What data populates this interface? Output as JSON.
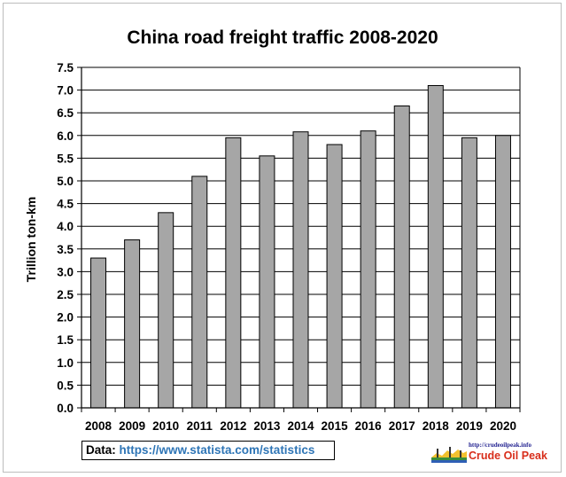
{
  "chart_data": {
    "type": "bar",
    "title": "China road freight traffic 2008-2020",
    "xlabel": "",
    "ylabel": "Trillion ton-km",
    "categories": [
      "2008",
      "2009",
      "2010",
      "2011",
      "2012",
      "2013",
      "2014",
      "2015",
      "2016",
      "2017",
      "2018",
      "2019",
      "2020"
    ],
    "values": [
      3.3,
      3.7,
      4.3,
      5.1,
      5.95,
      5.55,
      6.08,
      5.8,
      6.1,
      6.65,
      7.1,
      5.95,
      6.0
    ],
    "ylim": [
      0,
      7.5
    ],
    "yticks": [
      "0.0",
      "0.5",
      "1.0",
      "1.5",
      "2.0",
      "2.5",
      "3.0",
      "3.5",
      "4.0",
      "4.5",
      "5.0",
      "5.5",
      "6.0",
      "6.5",
      "7.0",
      "7.5"
    ],
    "grid": true,
    "legend": "none",
    "colors": {
      "bar": "#a6a6a6",
      "bar_stroke": "#000000",
      "grid": "#000000"
    }
  },
  "source": {
    "label": "Data:",
    "link_text": "https://www.statista.com/statistics"
  },
  "logo": {
    "url_text": "http://crudeoilpeak.info",
    "name": "Crude Oil Peak"
  }
}
